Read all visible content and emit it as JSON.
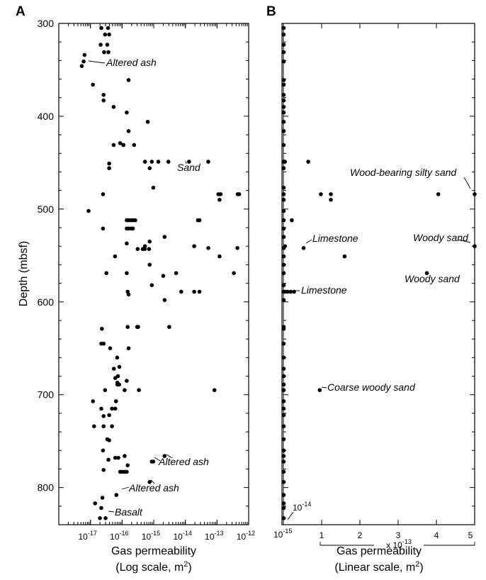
{
  "chart_data": [
    {
      "panel": "A",
      "type": "scatter",
      "xlabel": "Gas permeability",
      "xlabel2": "(Log scale, m2)",
      "ylabel": "Depth (mbsf)",
      "xscale": "log",
      "xlim": [
        1e-18,
        1e-12
      ],
      "ylim": [
        840,
        300
      ],
      "x_ticks": [
        {
          "base": "10",
          "exp": "-17"
        },
        {
          "base": "10",
          "exp": "-16"
        },
        {
          "base": "10",
          "exp": "-15"
        },
        {
          "base": "10",
          "exp": "-14"
        },
        {
          "base": "10",
          "exp": "-13"
        },
        {
          "base": "10",
          "exp": "-12"
        }
      ],
      "y_ticks": [
        "300",
        "400",
        "500",
        "600",
        "700",
        "800"
      ],
      "points": [
        [
          2.2e-17,
          305
        ],
        [
          3.6e-17,
          305
        ],
        [
          2.9e-17,
          312
        ],
        [
          3.9e-17,
          312
        ],
        [
          2.1e-17,
          323
        ],
        [
          3.4e-17,
          323
        ],
        [
          2.7e-17,
          331
        ],
        [
          3.7e-17,
          331
        ],
        [
          6.5e-18,
          334
        ],
        [
          6.1e-18,
          341
        ],
        [
          5.3e-18,
          346
        ],
        [
          1.6e-16,
          361
        ],
        [
          1.2e-17,
          366
        ],
        [
          2.6e-17,
          377
        ],
        [
          2.6e-17,
          383
        ],
        [
          5.4e-17,
          390
        ],
        [
          1.4e-16,
          396
        ],
        [
          6.5e-16,
          406
        ],
        [
          1.6e-16,
          416
        ],
        [
          8.7e-17,
          429
        ],
        [
          1.1e-16,
          431
        ],
        [
          5.4e-17,
          431
        ],
        [
          1.1e-16,
          431
        ],
        [
          2.4e-16,
          431
        ],
        [
          5.3e-16,
          449
        ],
        [
          1.4e-15,
          449
        ],
        [
          2.9e-15,
          449
        ],
        [
          1.3e-14,
          449
        ],
        [
          5.3e-14,
          449
        ],
        [
          8.7e-16,
          449
        ],
        [
          3.9e-17,
          451
        ],
        [
          7.4e-16,
          456
        ],
        [
          3.9e-17,
          456
        ],
        [
          9.7e-16,
          477
        ],
        [
          2.5e-17,
          484
        ],
        [
          1.1e-13,
          484
        ],
        [
          1.3e-13,
          484
        ],
        [
          4.5e-13,
          484
        ],
        [
          5e-13,
          484
        ],
        [
          1.2e-13,
          490
        ],
        [
          8.7e-18,
          502
        ],
        [
          1.4e-16,
          512
        ],
        [
          1.6e-16,
          512
        ],
        [
          1.9e-16,
          512
        ],
        [
          2.2e-16,
          512
        ],
        [
          2.6e-16,
          512
        ],
        [
          2.5e-14,
          512
        ],
        [
          2.8e-14,
          512
        ],
        [
          2.5e-17,
          521
        ],
        [
          1.4e-16,
          521
        ],
        [
          1.6e-16,
          521
        ],
        [
          1.9e-16,
          521
        ],
        [
          2.2e-16,
          521
        ],
        [
          2.2e-15,
          530
        ],
        [
          7.4e-16,
          535
        ],
        [
          1.4e-16,
          537
        ],
        [
          5.3e-16,
          540
        ],
        [
          1.9e-14,
          540
        ],
        [
          5.3e-14,
          542
        ],
        [
          4.4e-13,
          542
        ],
        [
          3.1e-16,
          543
        ],
        [
          4.5e-16,
          543
        ],
        [
          5.2e-16,
          543
        ],
        [
          7.1e-16,
          543
        ],
        [
          6e-17,
          551
        ],
        [
          1.2e-13,
          551
        ],
        [
          7.4e-16,
          560
        ],
        [
          3.2e-17,
          569
        ],
        [
          1.4e-16,
          569
        ],
        [
          2e-15,
          572
        ],
        [
          5.1e-15,
          569
        ],
        [
          3.4e-13,
          569
        ],
        [
          8.7e-16,
          582
        ],
        [
          1.5e-16,
          589
        ],
        [
          1.6e-16,
          592
        ],
        [
          7.4e-15,
          589
        ],
        [
          1.9e-14,
          589
        ],
        [
          2.8e-14,
          589
        ],
        [
          2.2e-15,
          598
        ],
        [
          1.5e-16,
          627
        ],
        [
          3e-16,
          627
        ],
        [
          3.2e-16,
          627
        ],
        [
          3.1e-15,
          627
        ],
        [
          2.3e-17,
          629
        ],
        [
          2.2e-17,
          645
        ],
        [
          2.6e-17,
          645
        ],
        [
          4.2e-17,
          650
        ],
        [
          1.6e-16,
          650
        ],
        [
          7e-17,
          660
        ],
        [
          8.2e-17,
          670
        ],
        [
          5.5e-17,
          672
        ],
        [
          7.4e-17,
          680
        ],
        [
          6.1e-17,
          682
        ],
        [
          1.4e-16,
          685
        ],
        [
          7.1e-17,
          687
        ],
        [
          8.1e-17,
          689
        ],
        [
          7.1e-17,
          689
        ],
        [
          2.9e-17,
          695
        ],
        [
          1.2e-16,
          695
        ],
        [
          3.4e-16,
          695
        ],
        [
          8.3e-14,
          695
        ],
        [
          1.2e-17,
          707
        ],
        [
          6.4e-17,
          707
        ],
        [
          2.2e-17,
          715
        ],
        [
          4.8e-17,
          715
        ],
        [
          6.1e-17,
          715
        ],
        [
          3.9e-17,
          722
        ],
        [
          2.6e-17,
          723
        ],
        [
          1.3e-17,
          734
        ],
        [
          2.6e-17,
          734
        ],
        [
          4.8e-17,
          734
        ],
        [
          3.4e-17,
          748
        ],
        [
          3.9e-17,
          749
        ],
        [
          2.5e-17,
          760
        ],
        [
          1.2e-16,
          766
        ],
        [
          2.2e-15,
          766
        ],
        [
          3.7e-17,
          770
        ],
        [
          6.1e-17,
          768
        ],
        [
          7.6e-17,
          768
        ],
        [
          8.7e-16,
          772
        ],
        [
          9.7e-16,
          772
        ],
        [
          2.6e-17,
          781
        ],
        [
          1.5e-16,
          776
        ],
        [
          1.4e-16,
          783
        ],
        [
          8.7e-17,
          783
        ],
        [
          1e-16,
          783
        ],
        [
          1.2e-16,
          783
        ],
        [
          7.4e-16,
          794
        ],
        [
          6.6e-17,
          808
        ],
        [
          2.4e-17,
          811
        ],
        [
          2.2e-17,
          822
        ],
        [
          3e-17,
          833
        ],
        [
          2e-17,
          833
        ],
        [
          1.4e-17,
          817
        ]
      ],
      "annotations": [
        "Altered ash",
        "Sand",
        "Altered ash",
        "Altered ash",
        "Basalt"
      ]
    },
    {
      "panel": "B",
      "type": "scatter",
      "xlabel": "Gas permeability",
      "xlabel2": "(Linear scale, m2)",
      "xscale": "linear",
      "x_multiplier_base": "x 10",
      "x_multiplier_exp": "-13",
      "xlim": [
        0,
        5e-13
      ],
      "ylim": [
        840,
        300
      ],
      "x_ticks": [
        "1",
        "2",
        "3",
        "4",
        "5"
      ],
      "x_origin_label": {
        "base": "10",
        "exp": "-15"
      },
      "x_near_zero_label": {
        "base": "10",
        "exp": "-14"
      },
      "points": [
        [
          1e-15,
          305
        ],
        [
          1e-15,
          312
        ],
        [
          1e-15,
          323
        ],
        [
          1e-15,
          331
        ],
        [
          1e-15,
          341
        ],
        [
          1e-15,
          361
        ],
        [
          1e-15,
          366
        ],
        [
          1e-15,
          377
        ],
        [
          1e-15,
          383
        ],
        [
          1e-15,
          390
        ],
        [
          1e-15,
          396
        ],
        [
          1e-15,
          406
        ],
        [
          1e-15,
          416
        ],
        [
          1e-15,
          431
        ],
        [
          1e-15,
          449
        ],
        [
          1e-15,
          456
        ],
        [
          2e-15,
          449
        ],
        [
          4e-15,
          449
        ],
        [
          6.5e-14,
          449
        ],
        [
          1e-15,
          477
        ],
        [
          1e-15,
          484
        ],
        [
          1e-15,
          490
        ],
        [
          9.8e-14,
          484
        ],
        [
          1.24e-13,
          484
        ],
        [
          1.24e-13,
          490
        ],
        [
          4.05e-13,
          484
        ],
        [
          5e-13,
          484
        ],
        [
          1e-15,
          502
        ],
        [
          1e-15,
          512
        ],
        [
          2.2e-14,
          512
        ],
        [
          1e-15,
          521
        ],
        [
          1e-15,
          530
        ],
        [
          4e-15,
          540
        ],
        [
          1e-15,
          542
        ],
        [
          5.3e-14,
          542
        ],
        [
          5e-13,
          540
        ],
        [
          1.6e-13,
          551
        ],
        [
          1e-15,
          551
        ],
        [
          1e-15,
          560
        ],
        [
          1e-15,
          569
        ],
        [
          3.75e-13,
          569
        ],
        [
          1e-15,
          582
        ],
        [
          1e-15,
          589
        ],
        [
          4e-15,
          589
        ],
        [
          1.1e-14,
          589
        ],
        [
          1.9e-14,
          589
        ],
        [
          2.8e-14,
          589
        ],
        [
          1e-15,
          598
        ],
        [
          1e-15,
          627
        ],
        [
          1e-15,
          629
        ],
        [
          1e-15,
          645
        ],
        [
          1e-15,
          660
        ],
        [
          1e-15,
          672
        ],
        [
          1e-15,
          680
        ],
        [
          1e-15,
          689
        ],
        [
          9.5e-14,
          695
        ],
        [
          1e-15,
          695
        ],
        [
          1e-15,
          707
        ],
        [
          1e-15,
          715
        ],
        [
          1e-15,
          722
        ],
        [
          1e-15,
          734
        ],
        [
          1e-15,
          748
        ],
        [
          1e-15,
          760
        ],
        [
          1e-15,
          766
        ],
        [
          1e-15,
          772
        ],
        [
          1e-15,
          783
        ],
        [
          1e-15,
          794
        ],
        [
          1e-15,
          808
        ],
        [
          1e-15,
          817
        ],
        [
          1e-15,
          822
        ],
        [
          1e-15,
          833
        ]
      ],
      "annotations": [
        "Wood-bearing silty sand",
        "Limestone",
        "Woody sand",
        "Woody sand",
        "Limestone",
        "Coarse woody sand"
      ]
    }
  ]
}
